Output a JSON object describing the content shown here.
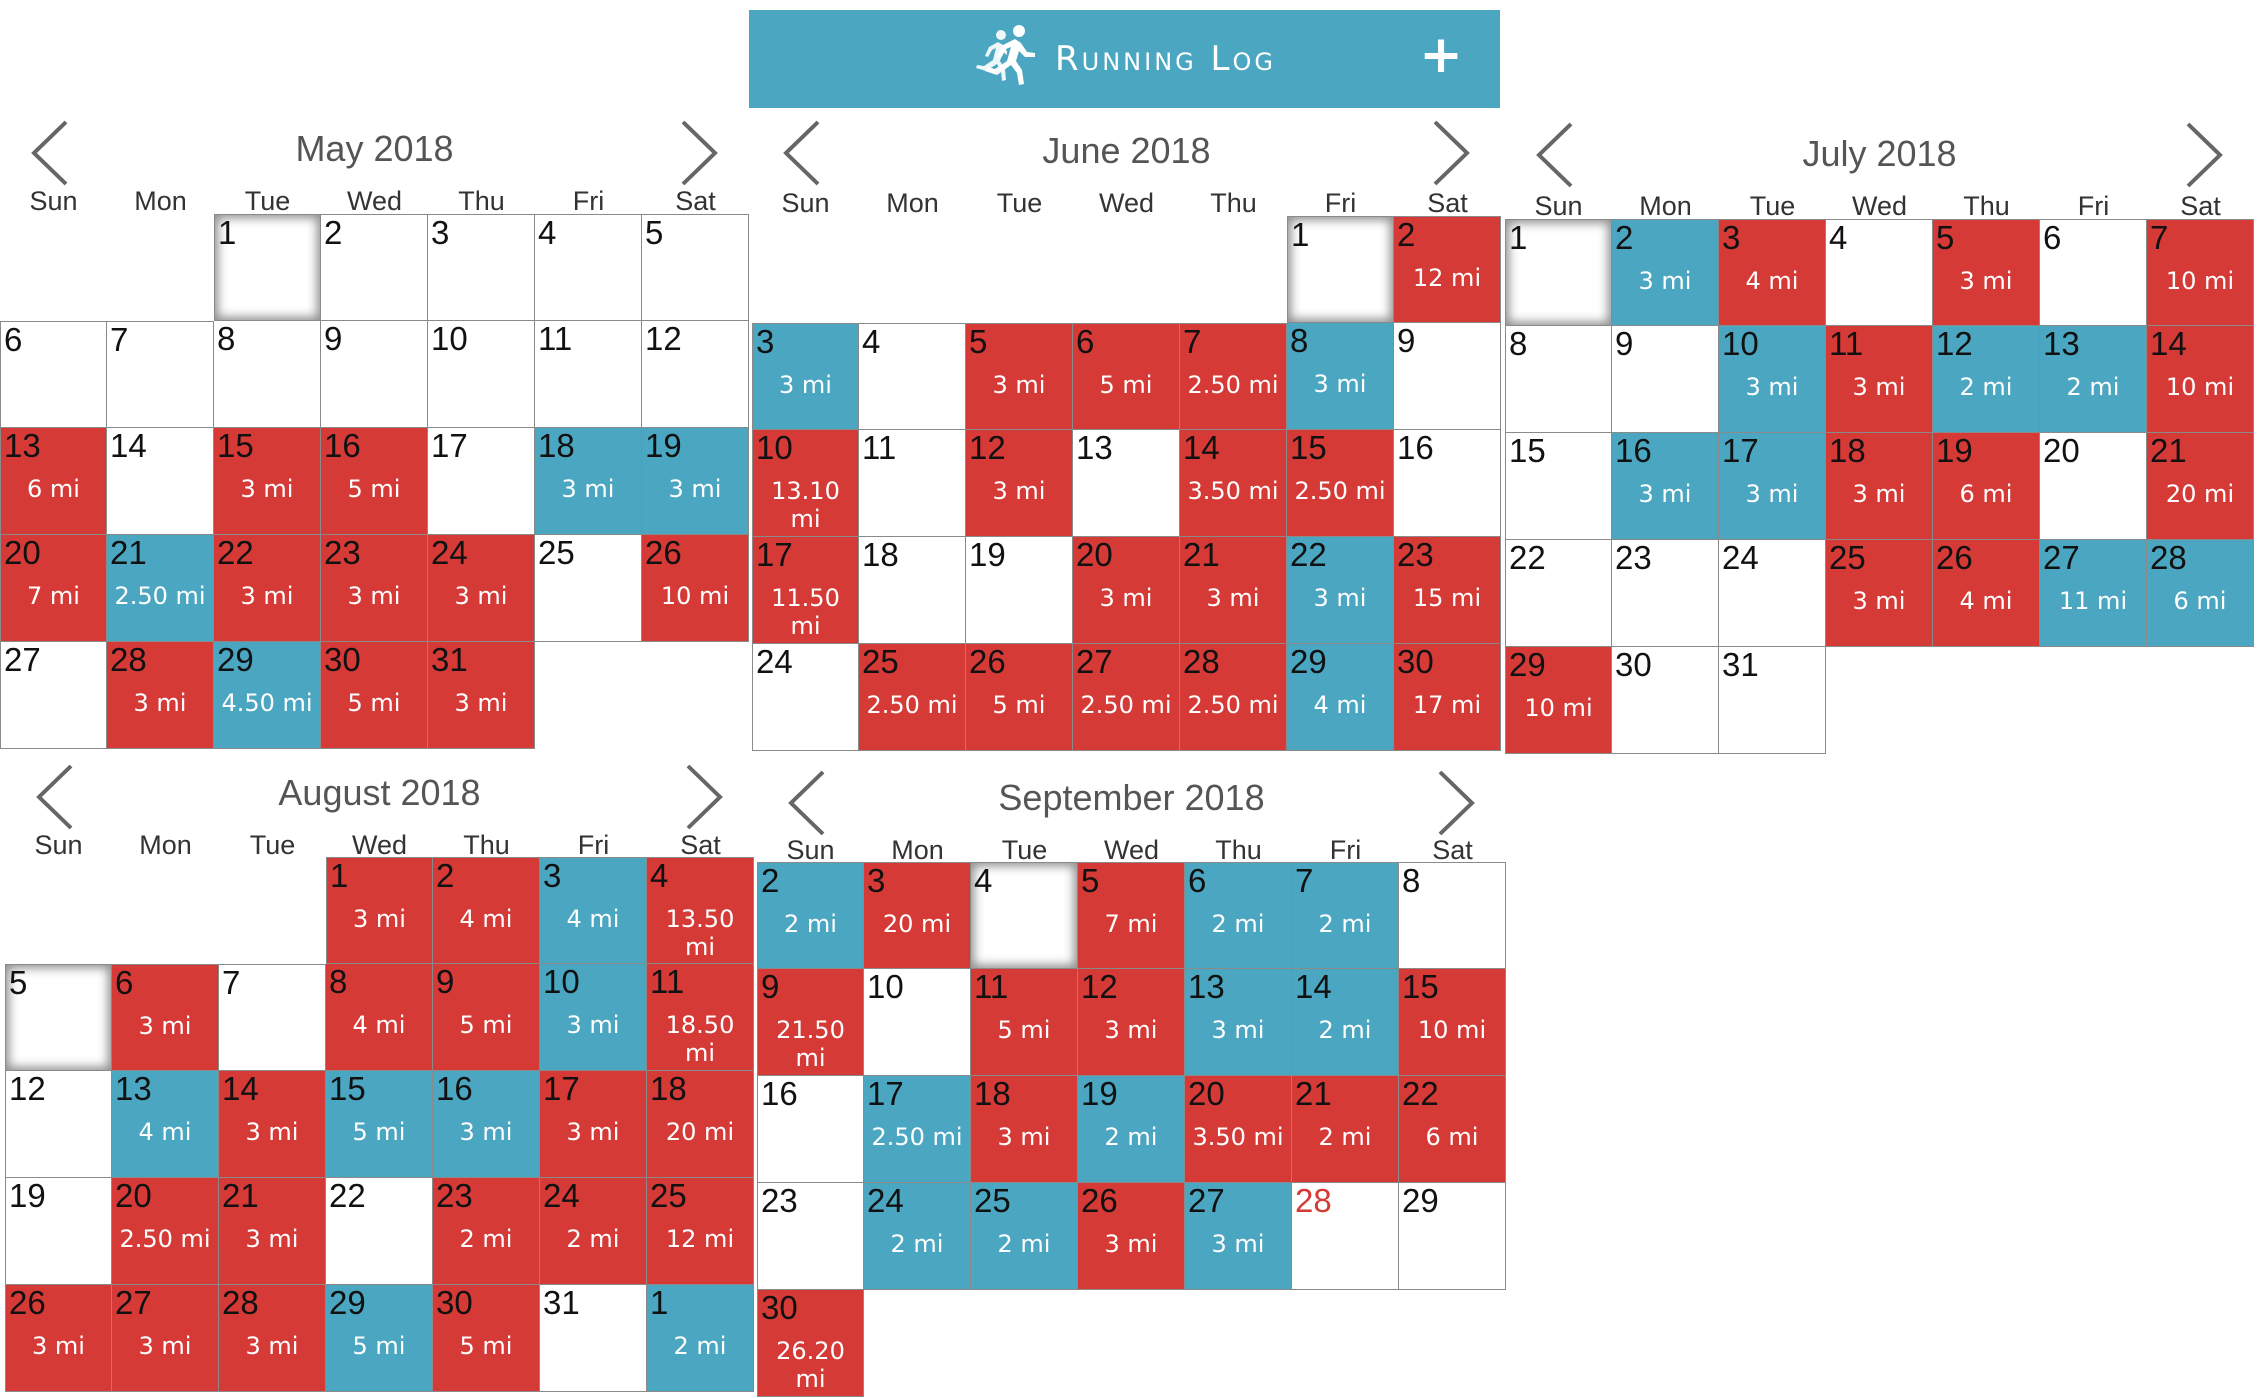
{
  "app": {
    "title": "Running Log",
    "add_icon": "plus-icon",
    "logo_icon": "runners-icon",
    "header_color": "#4aa6c1"
  },
  "colors": {
    "red": "#d63a37",
    "blue": "#4aa6c1"
  },
  "weekdays": [
    "Sun",
    "Mon",
    "Tue",
    "Wed",
    "Thu",
    "Fri",
    "Sat"
  ],
  "months": [
    {
      "title": "May 2018",
      "start_dow": 2,
      "days": [
        {
          "d": "1",
          "c": "white",
          "today": true
        },
        {
          "d": "2",
          "c": "white"
        },
        {
          "d": "3",
          "c": "white"
        },
        {
          "d": "4",
          "c": "white"
        },
        {
          "d": "5",
          "c": "white"
        },
        {
          "d": "6",
          "c": "white"
        },
        {
          "d": "7",
          "c": "white"
        },
        {
          "d": "8",
          "c": "white"
        },
        {
          "d": "9",
          "c": "white"
        },
        {
          "d": "10",
          "c": "white"
        },
        {
          "d": "11",
          "c": "white"
        },
        {
          "d": "12",
          "c": "white"
        },
        {
          "d": "13",
          "c": "red",
          "m": "6 mi"
        },
        {
          "d": "14",
          "c": "white"
        },
        {
          "d": "15",
          "c": "red",
          "m": "3 mi"
        },
        {
          "d": "16",
          "c": "red",
          "m": "5 mi"
        },
        {
          "d": "17",
          "c": "white"
        },
        {
          "d": "18",
          "c": "blue",
          "m": "3 mi"
        },
        {
          "d": "19",
          "c": "blue",
          "m": "3 mi"
        },
        {
          "d": "20",
          "c": "red",
          "m": "7 mi"
        },
        {
          "d": "21",
          "c": "blue",
          "m": "2.50 mi"
        },
        {
          "d": "22",
          "c": "red",
          "m": "3 mi"
        },
        {
          "d": "23",
          "c": "red",
          "m": "3 mi"
        },
        {
          "d": "24",
          "c": "red",
          "m": "3 mi"
        },
        {
          "d": "25",
          "c": "white"
        },
        {
          "d": "26",
          "c": "red",
          "m": "10 mi"
        },
        {
          "d": "27",
          "c": "white"
        },
        {
          "d": "28",
          "c": "red",
          "m": "3 mi"
        },
        {
          "d": "29",
          "c": "blue",
          "m": "4.50 mi"
        },
        {
          "d": "30",
          "c": "red",
          "m": "5 mi"
        },
        {
          "d": "31",
          "c": "red",
          "m": "3 mi"
        }
      ]
    },
    {
      "title": "June 2018",
      "start_dow": 5,
      "days": [
        {
          "d": "1",
          "c": "white",
          "today": true
        },
        {
          "d": "2",
          "c": "red",
          "m": "12 mi"
        },
        {
          "d": "3",
          "c": "blue",
          "m": "3 mi"
        },
        {
          "d": "4",
          "c": "white"
        },
        {
          "d": "5",
          "c": "red",
          "m": "3 mi"
        },
        {
          "d": "6",
          "c": "red",
          "m": "5 mi"
        },
        {
          "d": "7",
          "c": "red",
          "m": "2.50 mi"
        },
        {
          "d": "8",
          "c": "blue",
          "m": "3 mi"
        },
        {
          "d": "9",
          "c": "white"
        },
        {
          "d": "10",
          "c": "red",
          "m": "13.10 mi"
        },
        {
          "d": "11",
          "c": "white"
        },
        {
          "d": "12",
          "c": "red",
          "m": "3 mi"
        },
        {
          "d": "13",
          "c": "white"
        },
        {
          "d": "14",
          "c": "red",
          "m": "3.50 mi"
        },
        {
          "d": "15",
          "c": "red",
          "m": "2.50 mi"
        },
        {
          "d": "16",
          "c": "white"
        },
        {
          "d": "17",
          "c": "red",
          "m": "11.50 mi"
        },
        {
          "d": "18",
          "c": "white"
        },
        {
          "d": "19",
          "c": "white"
        },
        {
          "d": "20",
          "c": "red",
          "m": "3 mi"
        },
        {
          "d": "21",
          "c": "red",
          "m": "3 mi"
        },
        {
          "d": "22",
          "c": "blue",
          "m": "3 mi"
        },
        {
          "d": "23",
          "c": "red",
          "m": "15 mi"
        },
        {
          "d": "24",
          "c": "white"
        },
        {
          "d": "25",
          "c": "red",
          "m": "2.50 mi"
        },
        {
          "d": "26",
          "c": "red",
          "m": "5 mi"
        },
        {
          "d": "27",
          "c": "red",
          "m": "2.50 mi"
        },
        {
          "d": "28",
          "c": "red",
          "m": "2.50 mi"
        },
        {
          "d": "29",
          "c": "blue",
          "m": "4 mi"
        },
        {
          "d": "30",
          "c": "red",
          "m": "17 mi"
        }
      ]
    },
    {
      "title": "July 2018",
      "start_dow": 0,
      "days": [
        {
          "d": "1",
          "c": "white",
          "today": true
        },
        {
          "d": "2",
          "c": "blue",
          "m": "3 mi"
        },
        {
          "d": "3",
          "c": "red",
          "m": "4 mi"
        },
        {
          "d": "4",
          "c": "white"
        },
        {
          "d": "5",
          "c": "red",
          "m": "3 mi"
        },
        {
          "d": "6",
          "c": "white"
        },
        {
          "d": "7",
          "c": "red",
          "m": "10 mi"
        },
        {
          "d": "8",
          "c": "white"
        },
        {
          "d": "9",
          "c": "white"
        },
        {
          "d": "10",
          "c": "blue",
          "m": "3 mi"
        },
        {
          "d": "11",
          "c": "red",
          "m": "3 mi"
        },
        {
          "d": "12",
          "c": "blue",
          "m": "2 mi"
        },
        {
          "d": "13",
          "c": "blue",
          "m": "2 mi"
        },
        {
          "d": "14",
          "c": "red",
          "m": "10 mi"
        },
        {
          "d": "15",
          "c": "white"
        },
        {
          "d": "16",
          "c": "blue",
          "m": "3 mi"
        },
        {
          "d": "17",
          "c": "blue",
          "m": "3 mi"
        },
        {
          "d": "18",
          "c": "red",
          "m": "3 mi"
        },
        {
          "d": "19",
          "c": "red",
          "m": "6 mi"
        },
        {
          "d": "20",
          "c": "white"
        },
        {
          "d": "21",
          "c": "red",
          "m": "20 mi"
        },
        {
          "d": "22",
          "c": "white"
        },
        {
          "d": "23",
          "c": "white"
        },
        {
          "d": "24",
          "c": "white"
        },
        {
          "d": "25",
          "c": "red",
          "m": "3 mi"
        },
        {
          "d": "26",
          "c": "red",
          "m": "4 mi"
        },
        {
          "d": "27",
          "c": "blue",
          "m": "11 mi"
        },
        {
          "d": "28",
          "c": "blue",
          "m": "6 mi"
        },
        {
          "d": "29",
          "c": "red",
          "m": "10 mi"
        },
        {
          "d": "30",
          "c": "white"
        },
        {
          "d": "31",
          "c": "white"
        }
      ]
    },
    {
      "title": "August 2018",
      "start_dow": 3,
      "days": [
        {
          "d": "1",
          "c": "red",
          "m": "3 mi"
        },
        {
          "d": "2",
          "c": "red",
          "m": "4 mi"
        },
        {
          "d": "3",
          "c": "blue",
          "m": "4 mi"
        },
        {
          "d": "4",
          "c": "red",
          "m": "13.50 mi"
        },
        {
          "d": "5",
          "c": "white",
          "today": true
        },
        {
          "d": "6",
          "c": "red",
          "m": "3 mi"
        },
        {
          "d": "7",
          "c": "white"
        },
        {
          "d": "8",
          "c": "red",
          "m": "4 mi"
        },
        {
          "d": "9",
          "c": "red",
          "m": "5 mi"
        },
        {
          "d": "10",
          "c": "blue",
          "m": "3 mi"
        },
        {
          "d": "11",
          "c": "red",
          "m": "18.50 mi"
        },
        {
          "d": "12",
          "c": "white"
        },
        {
          "d": "13",
          "c": "blue",
          "m": "4 mi"
        },
        {
          "d": "14",
          "c": "red",
          "m": "3 mi"
        },
        {
          "d": "15",
          "c": "blue",
          "m": "5 mi"
        },
        {
          "d": "16",
          "c": "blue",
          "m": "3 mi"
        },
        {
          "d": "17",
          "c": "red",
          "m": "3 mi"
        },
        {
          "d": "18",
          "c": "red",
          "m": "20 mi"
        },
        {
          "d": "19",
          "c": "white"
        },
        {
          "d": "20",
          "c": "red",
          "m": "2.50 mi"
        },
        {
          "d": "21",
          "c": "red",
          "m": "3 mi"
        },
        {
          "d": "22",
          "c": "white"
        },
        {
          "d": "23",
          "c": "red",
          "m": "2 mi"
        },
        {
          "d": "24",
          "c": "red",
          "m": "2 mi"
        },
        {
          "d": "25",
          "c": "red",
          "m": "12 mi"
        },
        {
          "d": "26",
          "c": "red",
          "m": "3 mi"
        },
        {
          "d": "27",
          "c": "red",
          "m": "3 mi"
        },
        {
          "d": "28",
          "c": "red",
          "m": "3 mi"
        },
        {
          "d": "29",
          "c": "blue",
          "m": "5 mi"
        },
        {
          "d": "30",
          "c": "red",
          "m": "5 mi"
        },
        {
          "d": "31",
          "c": "white"
        },
        {
          "d": "1",
          "c": "blue",
          "m": "2 mi"
        }
      ]
    },
    {
      "title": "September 2018",
      "start_dow": 0,
      "days": [
        {
          "d": "2",
          "c": "blue",
          "m": "2 mi"
        },
        {
          "d": "3",
          "c": "red",
          "m": "20 mi"
        },
        {
          "d": "4",
          "c": "white",
          "today": true
        },
        {
          "d": "5",
          "c": "red",
          "m": "7 mi"
        },
        {
          "d": "6",
          "c": "blue",
          "m": "2 mi"
        },
        {
          "d": "7",
          "c": "blue",
          "m": "2 mi"
        },
        {
          "d": "8",
          "c": "white"
        },
        {
          "d": "9",
          "c": "red",
          "m": "21.50 mi"
        },
        {
          "d": "10",
          "c": "white"
        },
        {
          "d": "11",
          "c": "red",
          "m": "5 mi"
        },
        {
          "d": "12",
          "c": "red",
          "m": "3 mi"
        },
        {
          "d": "13",
          "c": "blue",
          "m": "3 mi"
        },
        {
          "d": "14",
          "c": "blue",
          "m": "2 mi"
        },
        {
          "d": "15",
          "c": "red",
          "m": "10 mi"
        },
        {
          "d": "16",
          "c": "white"
        },
        {
          "d": "17",
          "c": "blue",
          "m": "2.50 mi"
        },
        {
          "d": "18",
          "c": "red",
          "m": "3 mi"
        },
        {
          "d": "19",
          "c": "blue",
          "m": "2 mi"
        },
        {
          "d": "20",
          "c": "red",
          "m": "3.50 mi"
        },
        {
          "d": "21",
          "c": "red",
          "m": "2 mi"
        },
        {
          "d": "22",
          "c": "red",
          "m": "6 mi"
        },
        {
          "d": "23",
          "c": "white"
        },
        {
          "d": "24",
          "c": "blue",
          "m": "2 mi"
        },
        {
          "d": "25",
          "c": "blue",
          "m": "2 mi"
        },
        {
          "d": "26",
          "c": "red",
          "m": "3 mi"
        },
        {
          "d": "27",
          "c": "blue",
          "m": "3 mi"
        },
        {
          "d": "28",
          "c": "white",
          "highlight": true
        },
        {
          "d": "29",
          "c": "white"
        },
        {
          "d": "30",
          "c": "red",
          "m": "26.20 mi"
        }
      ]
    }
  ]
}
